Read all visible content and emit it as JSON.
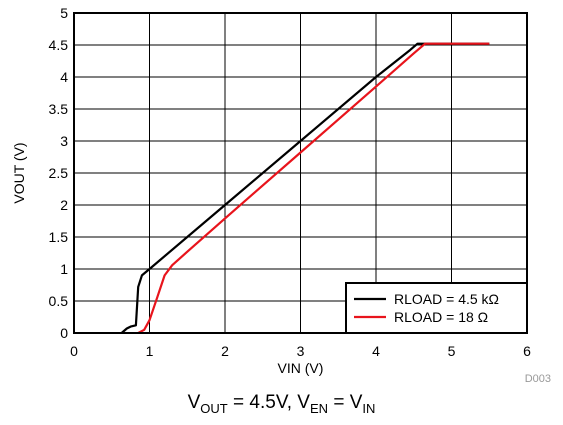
{
  "chart_data": {
    "type": "line",
    "xlabel": "VIN (V)",
    "ylabel": "VOUT (V)",
    "xlim": [
      0,
      6
    ],
    "ylim": [
      0,
      5
    ],
    "x_ticks": [
      "0",
      "1",
      "2",
      "3",
      "4",
      "5",
      "6"
    ],
    "y_ticks": [
      "0",
      "0.5",
      "1",
      "1.5",
      "2",
      "2.5",
      "3",
      "3.5",
      "4",
      "4.5",
      "5"
    ],
    "grid": true,
    "legend_position": "bottom-right",
    "series": [
      {
        "name": "RLOAD = 4.5 kΩ",
        "color": "#000000",
        "points": [
          [
            0.63,
            0.0
          ],
          [
            0.7,
            0.07
          ],
          [
            0.75,
            0.1
          ],
          [
            0.82,
            0.12
          ],
          [
            0.85,
            0.72
          ],
          [
            0.9,
            0.9
          ],
          [
            1.0,
            1.0
          ],
          [
            2.0,
            2.0
          ],
          [
            3.0,
            3.0
          ],
          [
            4.0,
            4.0
          ],
          [
            4.45,
            4.42
          ],
          [
            4.55,
            4.52
          ],
          [
            5.5,
            4.52
          ]
        ]
      },
      {
        "name": "RLOAD = 18 Ω",
        "color": "#e8141c",
        "points": [
          [
            0.85,
            0.0
          ],
          [
            0.93,
            0.05
          ],
          [
            1.0,
            0.2
          ],
          [
            1.1,
            0.55
          ],
          [
            1.2,
            0.9
          ],
          [
            1.3,
            1.06
          ],
          [
            1.5,
            1.27
          ],
          [
            2.0,
            1.79
          ],
          [
            3.0,
            2.82
          ],
          [
            4.0,
            3.85
          ],
          [
            4.5,
            4.37
          ],
          [
            4.65,
            4.52
          ],
          [
            5.5,
            4.52
          ]
        ]
      }
    ]
  },
  "caption": {
    "v1": "V",
    "s1": "OUT",
    "mid": " = 4.5V, V",
    "s2": "EN",
    "mid2": " = V",
    "s3": "IN"
  },
  "figure_id": "D003"
}
